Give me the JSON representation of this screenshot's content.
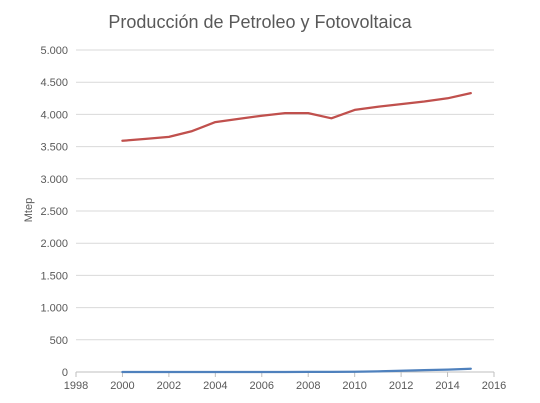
{
  "chart_data": {
    "type": "line",
    "title": "Producción de Petroleo y Fotovoltaica",
    "xlabel": "",
    "ylabel": "Mtep",
    "xlim": [
      1998,
      2016
    ],
    "ylim": [
      0,
      5000
    ],
    "x_ticks": [
      1998,
      2000,
      2002,
      2004,
      2006,
      2008,
      2010,
      2012,
      2014,
      2016
    ],
    "y_ticks": [
      0,
      500,
      1000,
      1500,
      2000,
      2500,
      3000,
      3500,
      4000,
      4500,
      5000
    ],
    "y_tick_labels": [
      "0",
      "500",
      "1.000",
      "1.500",
      "2.000",
      "2.500",
      "3.000",
      "3.500",
      "4.000",
      "4.500",
      "5.000"
    ],
    "grid": "horizontal",
    "legend": "none",
    "x": [
      2000,
      2001,
      2002,
      2003,
      2004,
      2005,
      2006,
      2007,
      2008,
      2009,
      2010,
      2011,
      2012,
      2013,
      2014,
      2015
    ],
    "series": [
      {
        "color": "#c0504d",
        "values": [
          3590,
          3620,
          3650,
          3740,
          3880,
          3930,
          3980,
          4020,
          4020,
          3940,
          4070,
          4120,
          4160,
          4200,
          4250,
          4330
        ]
      },
      {
        "color": "#4f81bd",
        "values": [
          0,
          0,
          0,
          0,
          0,
          0,
          0,
          0,
          1,
          1,
          3,
          10,
          20,
          30,
          38,
          52
        ]
      }
    ]
  }
}
